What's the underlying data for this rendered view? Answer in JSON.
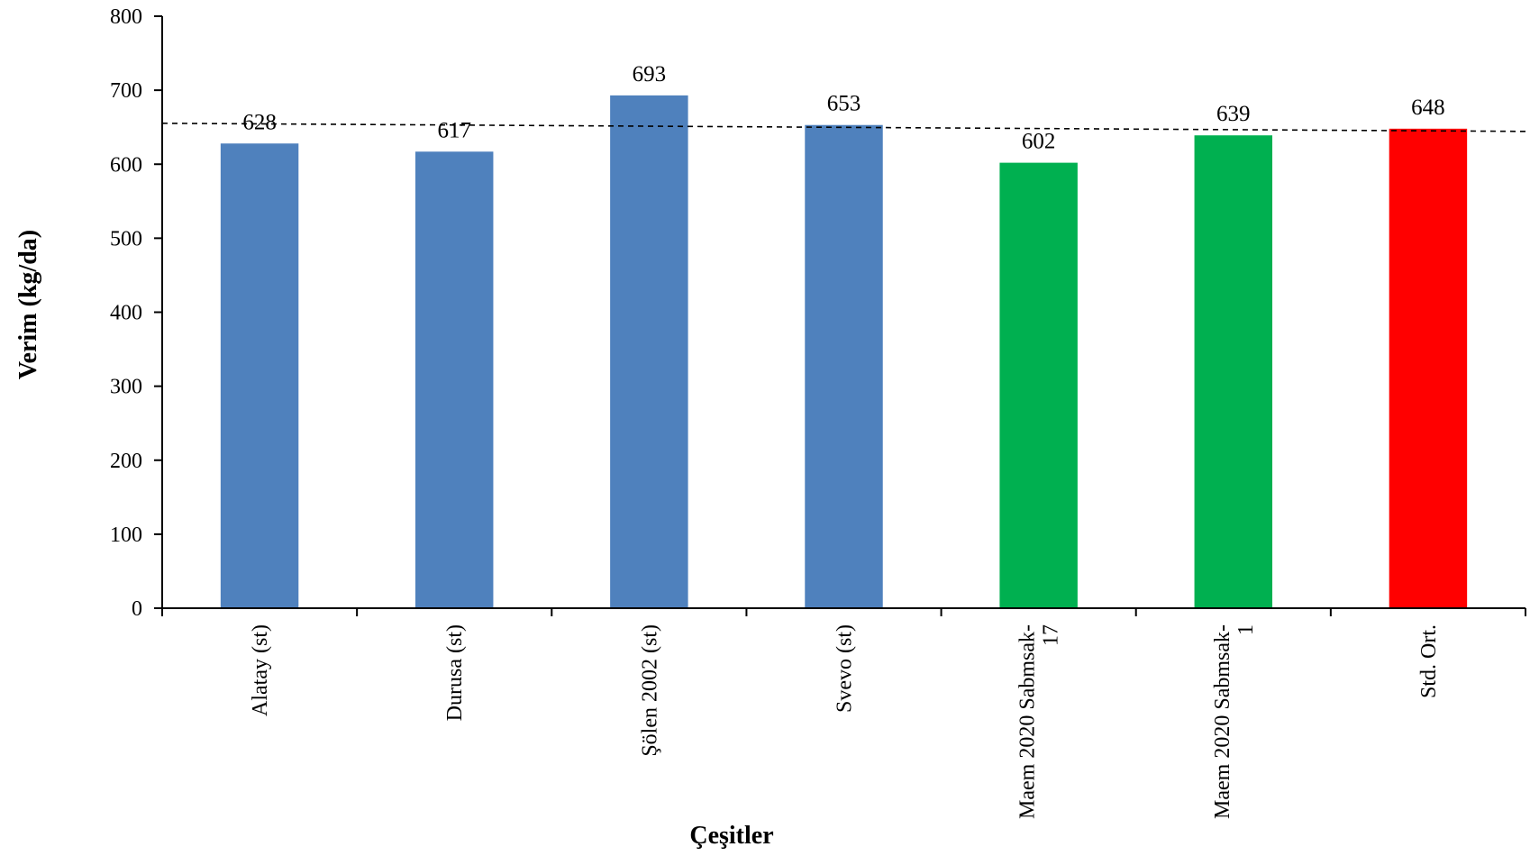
{
  "chart_data": {
    "type": "bar",
    "categories": [
      [
        "Alatay (st)"
      ],
      [
        "Durusa (st)"
      ],
      [
        "Şölen 2002 (st)"
      ],
      [
        "Svevo (st)"
      ],
      [
        "Maem 2020 Sabmsak-",
        "17"
      ],
      [
        "Maem 2020 Sabmsak-",
        "1"
      ],
      [
        "Std. Ort."
      ]
    ],
    "values": [
      628,
      617,
      693,
      653,
      602,
      639,
      648
    ],
    "data_labels": [
      "628",
      "617",
      "693",
      "653",
      "602",
      "639",
      "648"
    ],
    "bar_colors": [
      "#4f81bd",
      "#4f81bd",
      "#4f81bd",
      "#4f81bd",
      "#00b050",
      "#00b050",
      "#ff0000"
    ],
    "reference_line": {
      "value": 648,
      "style": "dashed",
      "color": "#000000"
    },
    "xlabel": "Çeşitler",
    "ylabel": "Verim (kg/da)",
    "ylim": [
      0,
      800
    ],
    "yticks": [
      0,
      100,
      200,
      300,
      400,
      500,
      600,
      700,
      800
    ],
    "grid": false,
    "legend": "none"
  }
}
